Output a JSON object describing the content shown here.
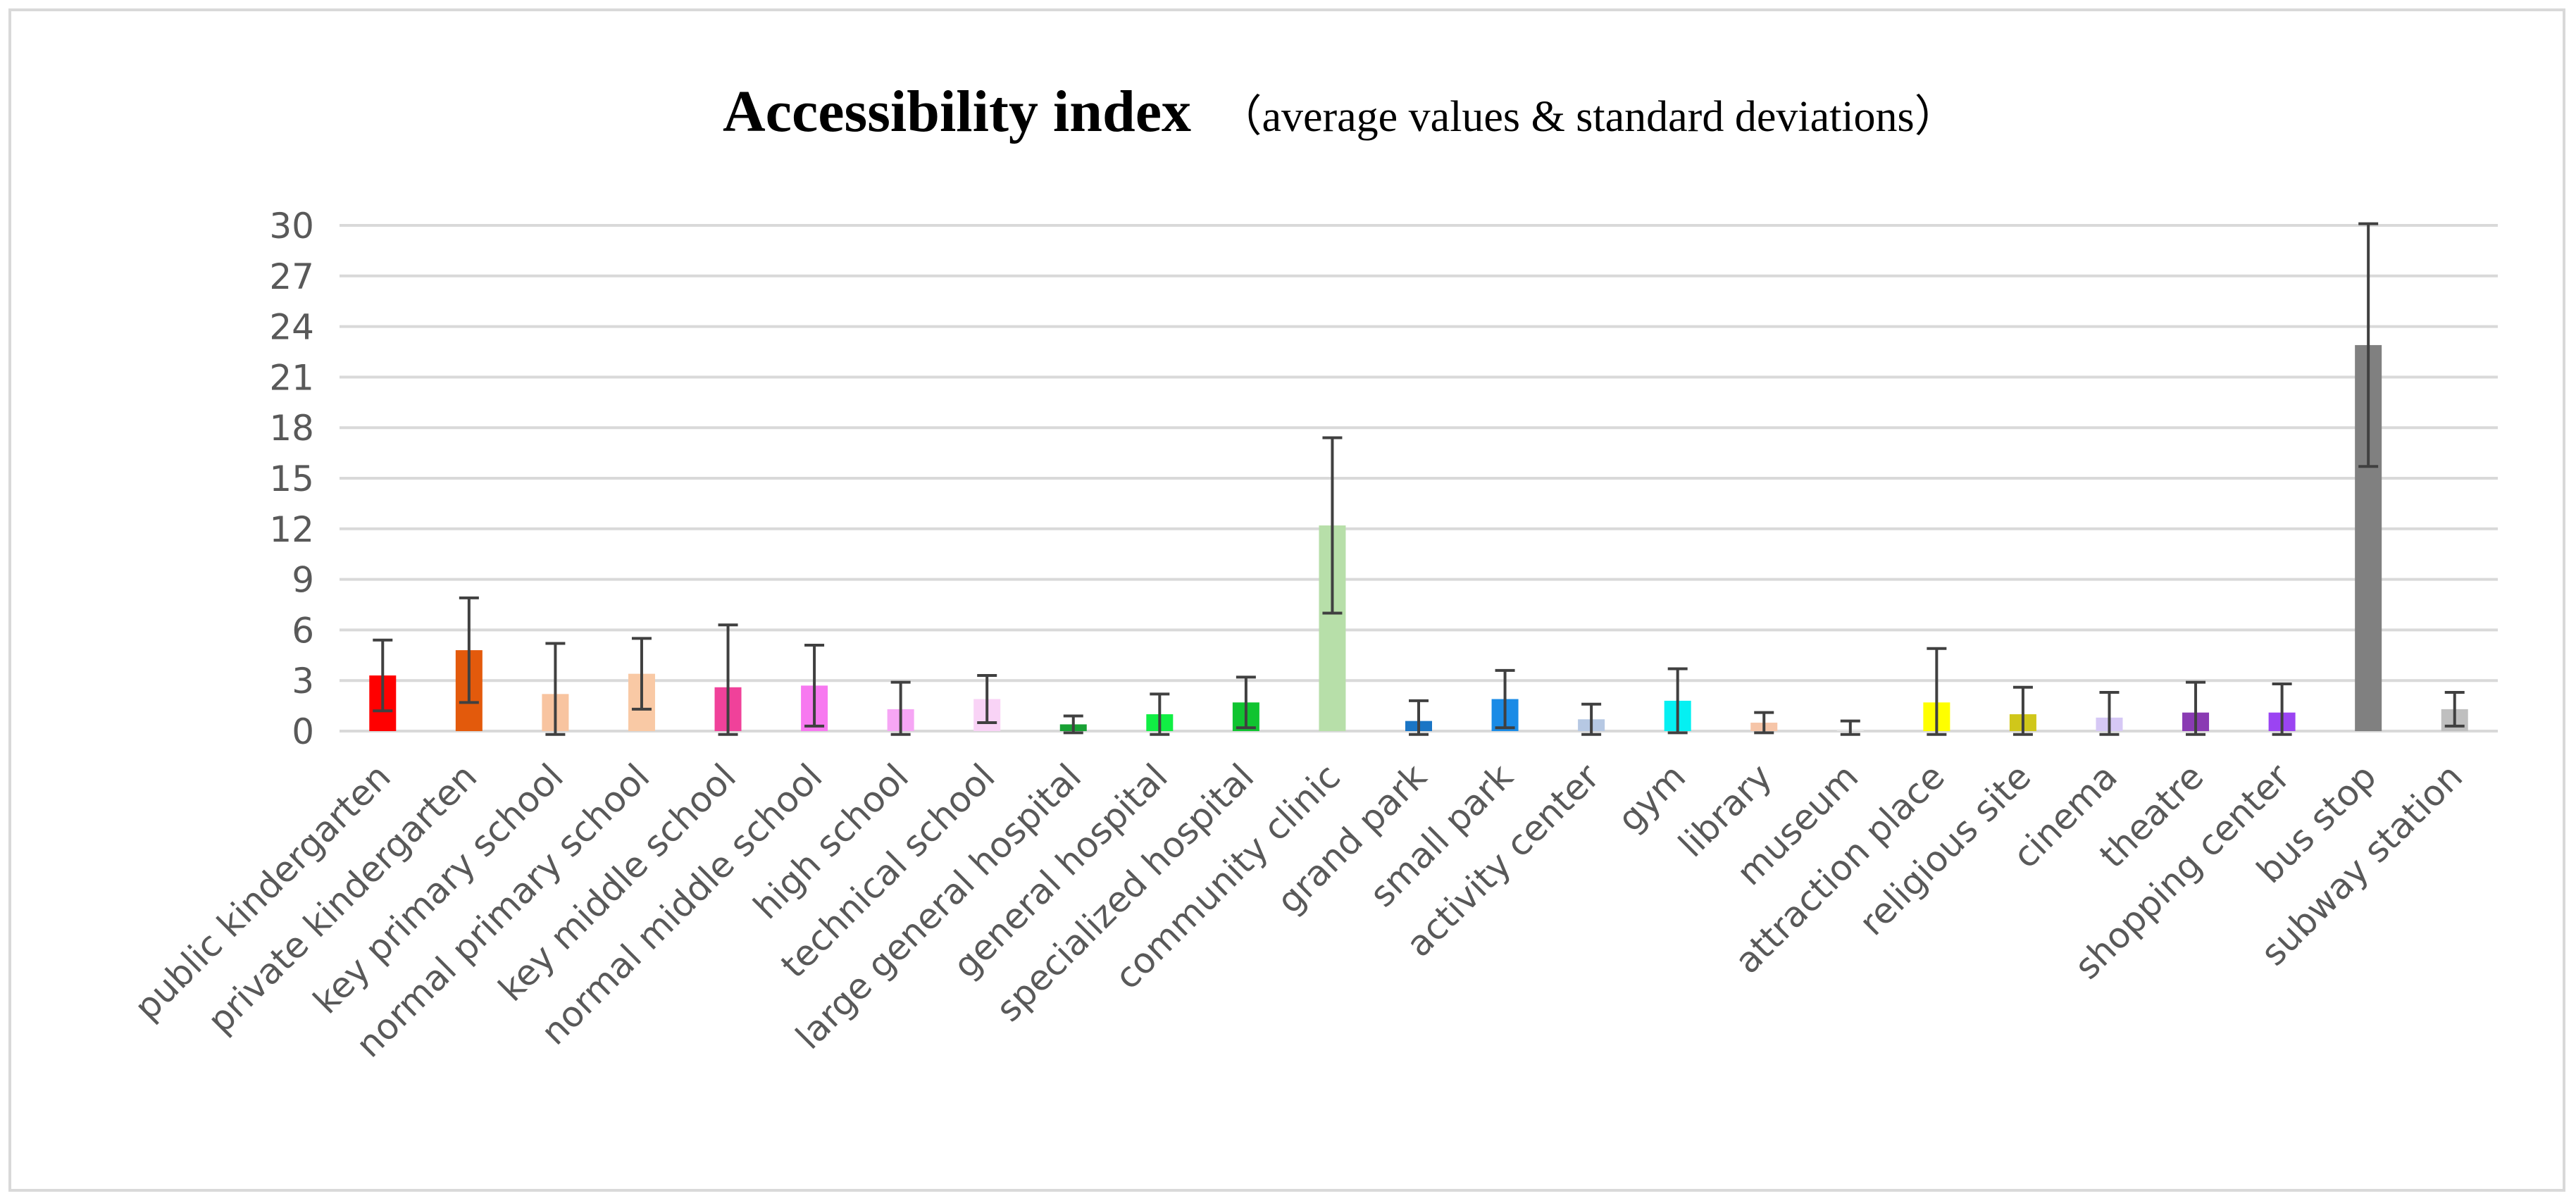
{
  "chart_data": {
    "type": "bar",
    "title": "Accessibility index",
    "subtitle": "（average values & standard deviations）",
    "xlabel": "",
    "ylabel": "",
    "ylim": [
      0,
      30
    ],
    "yticks": [
      "0",
      "3",
      "6",
      "9",
      "12",
      "15",
      "18",
      "21",
      "24",
      "27",
      "30"
    ],
    "grid": true,
    "legend": "none",
    "categories": [
      "public kindergarten",
      "private kindergarten",
      "key primary school",
      "normal primary school",
      "key middle school",
      "normal middle school",
      "high school",
      "technical school",
      "large general hospital",
      "general hospital",
      "specialized hospital",
      "community clinic",
      "grand park",
      "small park",
      "activity center",
      "gym",
      "library",
      "museum",
      "attraction place",
      "religious site",
      "cinema",
      "theatre",
      "shopping center",
      "bus stop",
      "subway station"
    ],
    "values": [
      3.3,
      4.8,
      2.2,
      3.4,
      2.6,
      2.7,
      1.3,
      1.9,
      0.4,
      1.0,
      1.7,
      12.2,
      0.6,
      1.9,
      0.7,
      1.8,
      0.5,
      0.1,
      1.7,
      1.0,
      0.8,
      1.1,
      1.1,
      22.9,
      1.3
    ],
    "std": [
      2.1,
      3.1,
      3.0,
      2.1,
      3.7,
      2.4,
      1.6,
      1.4,
      0.5,
      1.2,
      1.5,
      5.2,
      1.2,
      1.7,
      0.9,
      1.9,
      0.6,
      0.5,
      3.2,
      1.6,
      1.5,
      1.8,
      1.7,
      7.2,
      1.0
    ],
    "colors": [
      "#ff0000",
      "#e35a0c",
      "#f8c4a0",
      "#f9c9a5",
      "#f0419a",
      "#f779f0",
      "#f6a6f5",
      "#f9d3f6",
      "#18a134",
      "#11ee44",
      "#10c430",
      "#b7dfa9",
      "#1a75c5",
      "#1a8be6",
      "#b6c8e3",
      "#05f0f2",
      "#f6c5a8",
      "#e6e6e6",
      "#ffff00",
      "#d0c71a",
      "#d6c8f5",
      "#8a3bb3",
      "#9b44f2",
      "#808080",
      "#bfbfbf"
    ]
  }
}
